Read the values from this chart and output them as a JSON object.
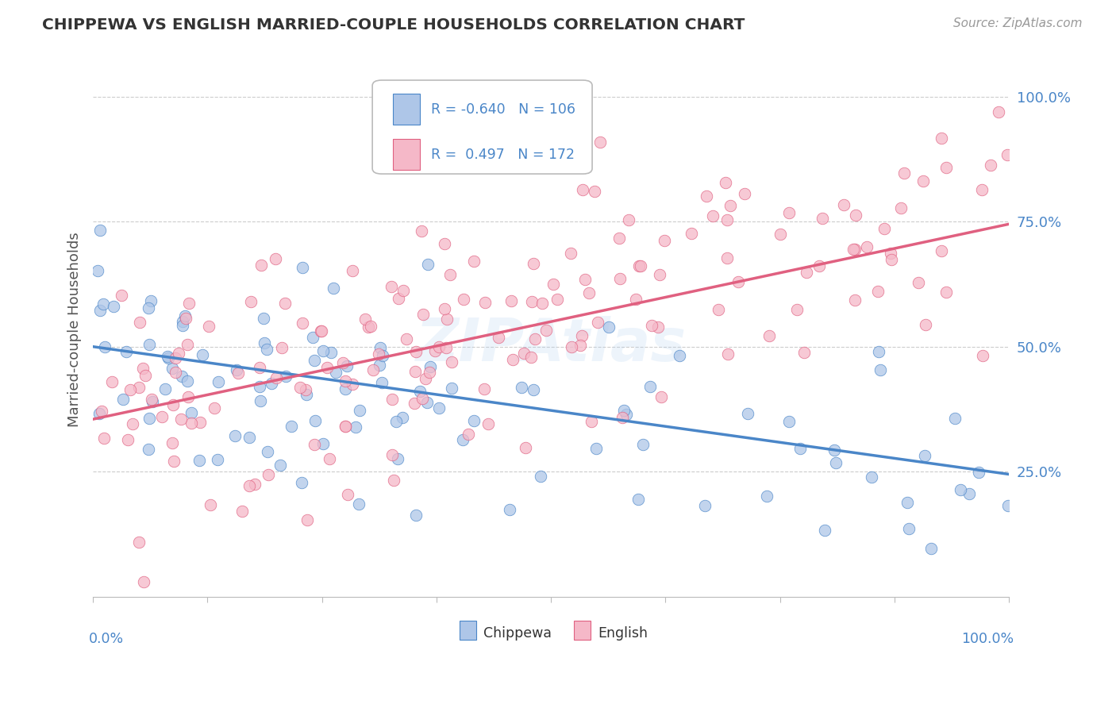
{
  "title": "CHIPPEWA VS ENGLISH MARRIED-COUPLE HOUSEHOLDS CORRELATION CHART",
  "source": "Source: ZipAtlas.com",
  "ylabel": "Married-couple Households",
  "ytick_labels": [
    "25.0%",
    "50.0%",
    "75.0%",
    "100.0%"
  ],
  "ytick_values": [
    0.25,
    0.5,
    0.75,
    1.0
  ],
  "xlim": [
    0.0,
    1.0
  ],
  "ylim": [
    0.0,
    1.07
  ],
  "chippewa_R": -0.64,
  "chippewa_N": 106,
  "english_R": 0.497,
  "english_N": 172,
  "chippewa_color": "#aec6e8",
  "english_color": "#f5b8c8",
  "chippewa_line_color": "#4a86c8",
  "english_line_color": "#e06080",
  "background_color": "#ffffff",
  "grid_color": "#cccccc",
  "title_color": "#333333",
  "source_color": "#999999",
  "legend_text_color": "#4a86c8",
  "chip_line_start_y": 0.5,
  "chip_line_end_y": 0.245,
  "eng_line_start_y": 0.355,
  "eng_line_end_y": 0.745
}
